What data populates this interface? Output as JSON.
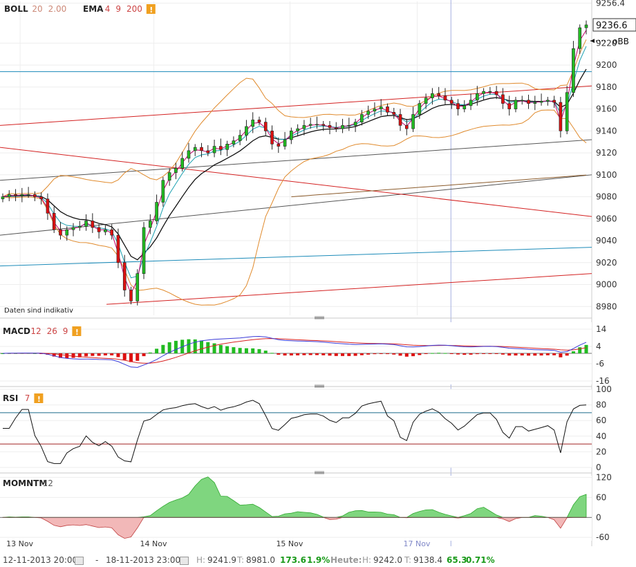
{
  "panels": {
    "price": {
      "indicators": [
        {
          "name": "BOLL",
          "params": [
            "20",
            "2.00"
          ]
        },
        {
          "name": "EMA",
          "params": [
            "4",
            "9",
            "200"
          ]
        }
      ],
      "last_price": "9236.6",
      "annotation": "oBB",
      "watermark": "Daten sind indikativ"
    },
    "macd": {
      "name": "MACD",
      "params": [
        "12",
        "26",
        "9"
      ]
    },
    "rsi": {
      "name": "RSI",
      "params": [
        "7"
      ]
    },
    "momentum": {
      "name": "MOMNTM",
      "params": [
        "12"
      ]
    }
  },
  "chart_data": [
    {
      "type": "candlestick",
      "panel": "price",
      "x_labels": [
        "13 Nov",
        "14 Nov",
        "15 Nov",
        "17 Nov"
      ],
      "y_ticks": [
        8980,
        9000,
        9020,
        9040,
        9060,
        9080,
        9100,
        9120,
        9140,
        9160,
        9180,
        9200,
        9220,
        9236.6,
        9256.4
      ],
      "ylim": [
        8972,
        9258
      ],
      "last_value": 9236.6,
      "close": [
        9080,
        9082,
        9081,
        9082,
        9082,
        9080,
        9078,
        9065,
        9050,
        9045,
        9050,
        9052,
        9053,
        9058,
        9052,
        9048,
        9050,
        9045,
        9020,
        8995,
        8985,
        9010,
        9052,
        9058,
        9075,
        9095,
        9102,
        9106,
        9115,
        9122,
        9125,
        9122,
        9120,
        9126,
        9123,
        9128,
        9131,
        9136,
        9144,
        9150,
        9148,
        9140,
        9128,
        9126,
        9132,
        9140,
        9142,
        9145,
        9146,
        9146,
        9145,
        9143,
        9142,
        9145,
        9145,
        9148,
        9155,
        9158,
        9160,
        9162,
        9157,
        9155,
        9145,
        9142,
        9155,
        9165,
        9170,
        9174,
        9172,
        9168,
        9165,
        9160,
        9163,
        9168,
        9174,
        9176,
        9176,
        9173,
        9165,
        9160,
        9168,
        9168,
        9165,
        9166,
        9167,
        9168,
        9166,
        9140,
        9175,
        9215,
        9234,
        9236.6
      ],
      "grid": true,
      "legend": "top-left"
    },
    {
      "type": "line",
      "panel": "macd",
      "name": "MACD",
      "y_ticks": [
        14,
        4,
        -6,
        -16
      ],
      "ylim": [
        -18,
        18
      ],
      "series": [
        {
          "name": "MACD",
          "color": "#3a3ad8"
        },
        {
          "name": "Signal",
          "color": "#d82020"
        },
        {
          "name": "Histogram",
          "colors": {
            "up": "#22bb22",
            "down": "#dd1111"
          }
        }
      ]
    },
    {
      "type": "line",
      "panel": "rsi",
      "name": "RSI",
      "y_ticks": [
        100,
        80,
        60,
        40,
        20,
        0
      ],
      "ylim": [
        0,
        100
      ],
      "levels": [
        70,
        30
      ]
    },
    {
      "type": "area",
      "panel": "momentum",
      "name": "MOMNTM",
      "y_ticks": [
        120,
        60,
        0,
        -60
      ],
      "ylim": [
        -70,
        125
      ]
    }
  ],
  "footer": {
    "start": "12-11-2013 20:00",
    "separator": "-",
    "end": "18-11-2013 23:00",
    "high_label": "H:",
    "high": "9241.9",
    "low_label": "T:",
    "low": "8981.0",
    "change": "173.6",
    "change_pct": "1.9%",
    "today_label": "Heute:",
    "today_high_label": "H:",
    "today_high": "9242.0",
    "today_low_label": "T:",
    "today_low": "9138.4",
    "today_change": "65.3",
    "today_change_pct": "0.71%"
  },
  "colors": {
    "up": "#22bb22",
    "down": "#dd1111",
    "boll": "#e08a2c",
    "ema4": "#c0006a",
    "ema9": "#1aa0b0",
    "ema200": "#111111",
    "grid": "#eeeeee",
    "vline": "#a6b0e0",
    "warn": "#f0a020"
  }
}
